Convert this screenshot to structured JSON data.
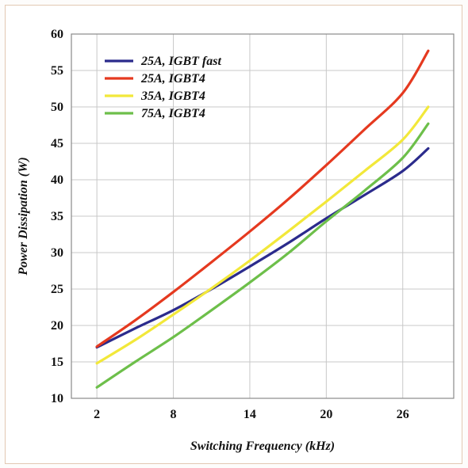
{
  "chart_data": {
    "type": "line",
    "title": "",
    "xlabel": "Switching Frequency (kHz)",
    "ylabel": "Power Dissipation (W)",
    "xlim": [
      0,
      30
    ],
    "ylim": [
      10,
      60
    ],
    "x_ticks": [
      2,
      8,
      14,
      20,
      26
    ],
    "y_ticks": [
      10,
      15,
      20,
      25,
      30,
      35,
      40,
      45,
      50,
      55,
      60
    ],
    "grid": true,
    "legend_position": "top-left",
    "series": [
      {
        "name": "25A, IGBT fast",
        "color": "#2b2b8c",
        "x": [
          2,
          5,
          8,
          11,
          14,
          17,
          20,
          23,
          26,
          28
        ],
        "y": [
          17,
          19.6,
          22.1,
          25,
          28.1,
          31.3,
          34.7,
          37.9,
          41.2,
          44.3
        ]
      },
      {
        "name": "25A, IGBT4",
        "color": "#e5391f",
        "x": [
          2,
          5,
          8,
          11,
          14,
          17,
          20,
          23,
          26,
          28
        ],
        "y": [
          17.1,
          20.7,
          24.6,
          28.7,
          32.9,
          37.3,
          42,
          46.9,
          51.9,
          57.7
        ]
      },
      {
        "name": "35A, IGBT4",
        "color": "#f2e83a",
        "x": [
          2,
          5,
          8,
          11,
          14,
          17,
          20,
          23,
          26,
          28
        ],
        "y": [
          14.8,
          18,
          21.5,
          25.1,
          28.9,
          32.9,
          37,
          41.2,
          45.5,
          50
        ]
      },
      {
        "name": "75A, IGBT4",
        "color": "#6dbf4a",
        "x": [
          2,
          5,
          8,
          11,
          14,
          17,
          20,
          23,
          26,
          28
        ],
        "y": [
          11.5,
          15,
          18.4,
          22.1,
          25.9,
          29.9,
          34.3,
          38.5,
          43,
          47.7
        ]
      }
    ]
  }
}
